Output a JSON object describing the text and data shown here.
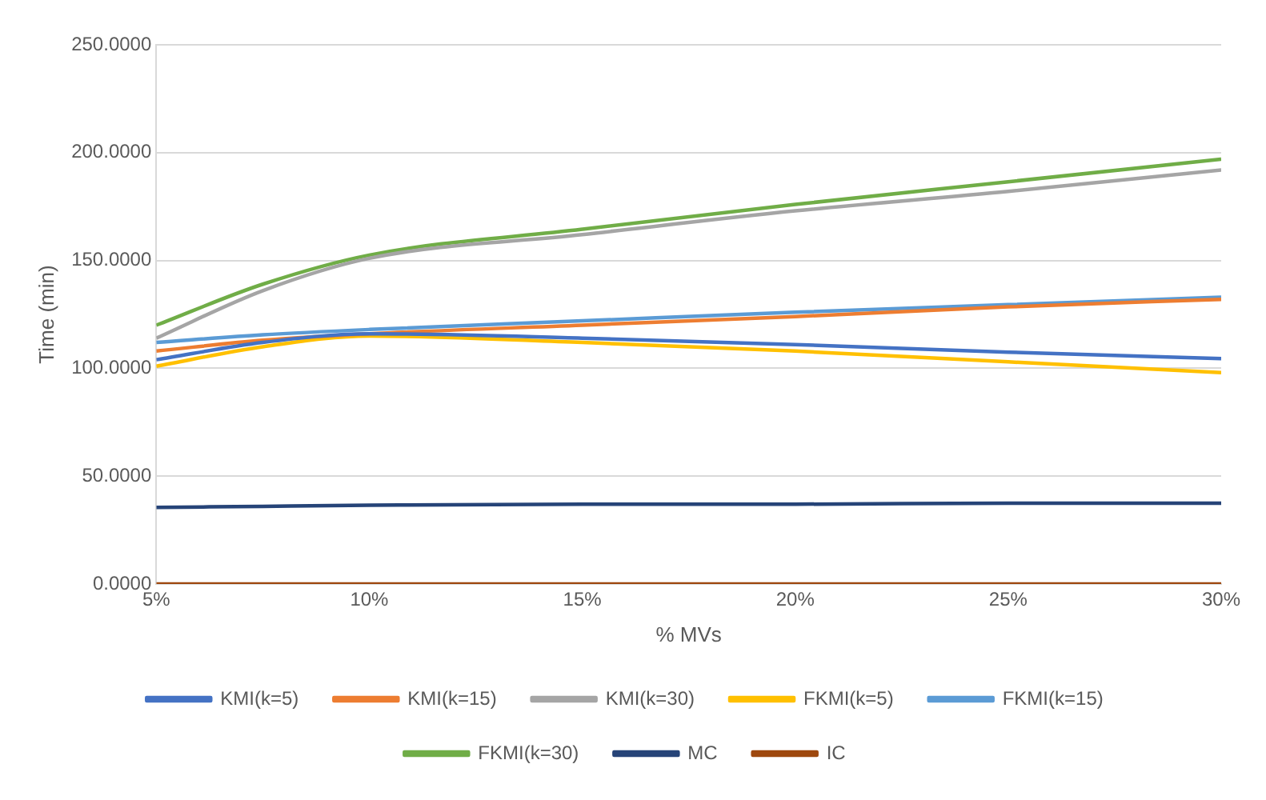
{
  "chart_data": {
    "type": "line",
    "xlabel": "% MVs",
    "ylabel": "Time (min)",
    "x": [
      5,
      7.5,
      10,
      15,
      20,
      25,
      30
    ],
    "xlim": [
      5,
      30
    ],
    "xticks": [
      {
        "value": 5,
        "label": "5%"
      },
      {
        "value": 10,
        "label": "10%"
      },
      {
        "value": 15,
        "label": "15%"
      },
      {
        "value": 20,
        "label": "20%"
      },
      {
        "value": 25,
        "label": "25%"
      },
      {
        "value": 30,
        "label": "30%"
      }
    ],
    "ylim": [
      0,
      250
    ],
    "yticks": [
      {
        "value": 0,
        "label": "0.0000"
      },
      {
        "value": 50,
        "label": "50.0000"
      },
      {
        "value": 100,
        "label": "100.0000"
      },
      {
        "value": 150,
        "label": "150.0000"
      },
      {
        "value": 200,
        "label": "200.0000"
      },
      {
        "value": 250,
        "label": "250.0000"
      }
    ],
    "grid": "y",
    "legend": "bottom",
    "marker": "none",
    "line_style": "solid",
    "series": [
      {
        "name": "KMI(k=5)",
        "color": "#4472c4",
        "values": [
          104,
          112,
          116,
          114,
          111,
          107.5,
          104.5
        ]
      },
      {
        "name": "KMI(k=15)",
        "color": "#ed7d31",
        "values": [
          108,
          113,
          116,
          120,
          124,
          128.5,
          132
        ]
      },
      {
        "name": "KMI(k=30)",
        "color": "#a5a5a5",
        "values": [
          114,
          136,
          151,
          162,
          173,
          182,
          192
        ]
      },
      {
        "name": "FKMI(k=5)",
        "color": "#ffc000",
        "values": [
          101,
          110,
          115,
          112,
          108,
          103,
          98
        ]
      },
      {
        "name": "FKMI(k=15)",
        "color": "#5b9bd5",
        "values": [
          112,
          115.5,
          118,
          122,
          126,
          129.5,
          133
        ]
      },
      {
        "name": "FKMI(k=30)",
        "color": "#70ad47",
        "values": [
          120,
          139,
          152.5,
          164.5,
          176,
          186.5,
          197
        ]
      },
      {
        "name": "MC",
        "color": "#264478",
        "values": [
          35.5,
          36,
          36.5,
          37,
          37,
          37.5,
          37.5
        ]
      },
      {
        "name": "IC",
        "color": "#9e480e",
        "values": [
          0,
          0,
          0,
          0,
          0,
          0,
          0
        ]
      }
    ]
  }
}
